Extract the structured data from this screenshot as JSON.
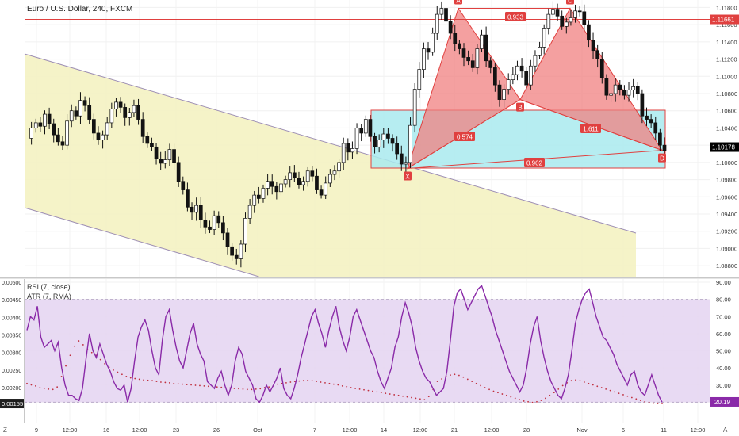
{
  "header": {
    "symbol_line": "Euro / U.S. Dollar, 240, FXCM"
  },
  "colors": {
    "bull": "#ffffff",
    "bear": "#131313",
    "hline": "#e0403f",
    "channel_fill": "#f4f2c2",
    "channel_line": "#9e8fb4",
    "harmonic_fill": "#f08080",
    "harmonic_edge": "#e0403f",
    "box_fill": "#a9eaee",
    "box_edge": "#e0403f",
    "rsi_line": "#8a2aa8",
    "rsi_band_fill": "#e6d6f2",
    "atr_dots": "#c0303f",
    "price_badge": "#000000",
    "hline_badge": "#e0403f",
    "rsi_badge": "#8a2aa8",
    "atr_badge": "#1e1e1e"
  },
  "chart_data": [
    {
      "type": "candlestick",
      "title": "Euro / U.S. Dollar, 240, FXCM",
      "y_ticks": [
        "1.11800",
        "1.11600",
        "1.11400",
        "1.11200",
        "1.11000",
        "1.10800",
        "1.10600",
        "1.10400",
        "1.10200",
        "1.10000",
        "1.09800",
        "1.09600",
        "1.09400",
        "1.09200",
        "1.09000",
        "1.08800"
      ],
      "ylim": [
        1.087,
        1.1185
      ],
      "last_price_label": "1.10178",
      "last_price": 1.10178,
      "hline_label": "1.11661",
      "hline_price": 1.11661,
      "harmonic_pattern": {
        "points": [
          {
            "label": "X",
            "price": 1.0993
          },
          {
            "label": "A",
            "price": 1.1179
          },
          {
            "label": "B",
            "price": 1.1073
          },
          {
            "label": "C",
            "price": 1.1179
          },
          {
            "label": "D",
            "price": 1.1014
          }
        ],
        "ratios": [
          "0.933",
          "0.574",
          "1.611",
          "0.902"
        ]
      },
      "anchors": [
        1.1028,
        1.104,
        1.1046,
        1.1042,
        1.1056,
        1.1045,
        1.1032,
        1.1024,
        1.102,
        1.1048,
        1.106,
        1.1054,
        1.1072,
        1.1066,
        1.105,
        1.1034,
        1.1026,
        1.1032,
        1.1046,
        1.1062,
        1.107,
        1.1064,
        1.1052,
        1.1058,
        1.1066,
        1.105,
        1.103,
        1.1022,
        1.1018,
        1.1004,
        1.0999,
        1.1003,
        1.1015,
        1.1,
        1.0978,
        1.0968,
        1.0948,
        1.0942,
        1.095,
        1.0933,
        1.0925,
        1.0922,
        1.0938,
        1.093,
        1.0918,
        1.0902,
        1.0892,
        1.0888,
        1.0905,
        1.0935,
        1.095,
        1.0962,
        1.0958,
        1.097,
        1.0978,
        1.0972,
        1.0966,
        1.0975,
        1.098,
        1.0988,
        1.0982,
        1.0974,
        1.0978,
        1.099,
        1.0984,
        1.0968,
        1.0962,
        1.0976,
        1.0986,
        1.099,
        1.1,
        1.1022,
        1.1012,
        1.1016,
        1.104,
        1.1034,
        1.105,
        1.103,
        1.1018,
        1.1026,
        1.1033,
        1.1028,
        1.1022,
        1.101,
        1.0998,
        1.1,
        1.1043,
        1.1085,
        1.1108,
        1.1132,
        1.1128,
        1.115,
        1.1172,
        1.1179,
        1.1164,
        1.115,
        1.1138,
        1.1132,
        1.1122,
        1.1118,
        1.111,
        1.1132,
        1.1148,
        1.1118,
        1.111,
        1.109,
        1.1073,
        1.1085,
        1.1096,
        1.1102,
        1.1112,
        1.1106,
        1.109,
        1.1112,
        1.1124,
        1.1134,
        1.1156,
        1.1172,
        1.1178,
        1.117,
        1.1158,
        1.1163,
        1.1168,
        1.1176,
        1.1175,
        1.116,
        1.1142,
        1.113,
        1.112,
        1.1098,
        1.1078,
        1.108,
        1.109,
        1.1084,
        1.1078,
        1.1084,
        1.1088,
        1.108,
        1.1054,
        1.105,
        1.1046,
        1.1034,
        1.102,
        1.1014
      ]
    },
    {
      "type": "line",
      "legend": [
        "RSI (7, close)",
        "ATR (7, RMA)"
      ],
      "rsi_ylim": [
        10,
        90
      ],
      "rsi_ticks": [
        "90.00",
        "80.00",
        "70.00",
        "60.00",
        "50.00",
        "40.00",
        "30.00",
        "20.00"
      ],
      "rsi_band": [
        20,
        80
      ],
      "rsi_last_label": "20.19",
      "rsi_last": 20.19,
      "atr_ylim": [
        0.0011,
        0.005
      ],
      "atr_ticks": [
        "0.00500",
        "0.00450",
        "0.00400",
        "0.00350",
        "0.00300",
        "0.00250",
        "0.00200"
      ],
      "atr_last_label": "0.00155",
      "atr_last": 0.00155,
      "rsi_values": [
        62,
        70,
        68,
        76,
        58,
        52,
        54,
        56,
        50,
        55,
        40,
        30,
        24,
        24,
        22,
        21,
        28,
        45,
        60,
        50,
        46,
        54,
        48,
        42,
        38,
        32,
        28,
        27,
        30,
        20,
        28,
        44,
        58,
        64,
        68,
        62,
        50,
        40,
        36,
        56,
        70,
        74,
        62,
        52,
        44,
        40,
        50,
        60,
        66,
        54,
        48,
        44,
        32,
        30,
        28,
        34,
        38,
        30,
        24,
        30,
        44,
        52,
        48,
        38,
        34,
        30,
        22,
        20,
        24,
        30,
        26,
        30,
        34,
        40,
        28,
        24,
        22,
        28,
        36,
        46,
        54,
        62,
        70,
        74,
        66,
        60,
        52,
        62,
        70,
        76,
        64,
        56,
        50,
        58,
        70,
        74,
        68,
        62,
        56,
        50,
        46,
        38,
        32,
        28,
        34,
        40,
        52,
        58,
        70,
        78,
        72,
        64,
        52,
        44,
        38,
        34,
        32,
        28,
        24,
        26,
        28,
        38,
        56,
        76,
        84,
        86,
        80,
        74,
        78,
        82,
        86,
        88,
        82,
        76,
        70,
        62,
        56,
        50,
        44,
        38,
        34,
        30,
        26,
        30,
        40,
        54,
        64,
        70,
        56,
        46,
        38,
        32,
        28,
        24,
        22,
        28,
        36,
        50,
        66,
        74,
        80,
        84,
        86,
        78,
        70,
        64,
        58,
        56,
        52,
        48,
        42,
        38,
        34,
        30,
        36,
        38,
        30,
        26,
        24,
        30,
        36,
        30,
        24,
        20
      ],
      "atr_values": [
        0.00212,
        0.00208,
        0.00205,
        0.002,
        0.00198,
        0.00196,
        0.00195,
        0.00202,
        0.00232,
        0.00262,
        0.00292,
        0.00318,
        0.00333,
        0.00322,
        0.0031,
        0.003,
        0.00292,
        0.0028,
        0.00268,
        0.00258,
        0.0025,
        0.00244,
        0.00238,
        0.00232,
        0.00228,
        0.00226,
        0.00224,
        0.00222,
        0.00221,
        0.0022,
        0.00218,
        0.00216,
        0.00215,
        0.00214,
        0.00212,
        0.00211,
        0.0021,
        0.00209,
        0.00208,
        0.00207,
        0.00206,
        0.00205,
        0.00204,
        0.00203,
        0.00202,
        0.00201,
        0.002,
        0.00199,
        0.00198,
        0.00197,
        0.00196,
        0.00195,
        0.00195,
        0.00196,
        0.00197,
        0.002,
        0.00202,
        0.00205,
        0.0021,
        0.00212,
        0.00214,
        0.00216,
        0.00218,
        0.00219,
        0.0022,
        0.00221,
        0.0022,
        0.00218,
        0.00216,
        0.00214,
        0.00212,
        0.0021,
        0.00208,
        0.00205,
        0.00203,
        0.002,
        0.00198,
        0.00196,
        0.00194,
        0.00192,
        0.0019,
        0.00188,
        0.00186,
        0.00184,
        0.00182,
        0.0018,
        0.00178,
        0.00176,
        0.00174,
        0.00172,
        0.0017,
        0.00168,
        0.00166,
        0.00175,
        0.00195,
        0.00218,
        0.00225,
        0.00232,
        0.00236,
        0.00238,
        0.00235,
        0.0023,
        0.00224,
        0.00218,
        0.00212,
        0.00206,
        0.002,
        0.00195,
        0.0019,
        0.00186,
        0.00182,
        0.00178,
        0.00174,
        0.0017,
        0.00166,
        0.00162,
        0.0016,
        0.00158,
        0.0016,
        0.00164,
        0.0017,
        0.00178,
        0.00186,
        0.00196,
        0.00206,
        0.00214,
        0.0022,
        0.00222,
        0.0022,
        0.00216,
        0.00212,
        0.00208,
        0.00204,
        0.002,
        0.00196,
        0.00192,
        0.00188,
        0.00184,
        0.0018,
        0.00176,
        0.00172,
        0.00168,
        0.00164,
        0.0016,
        0.00158,
        0.00156,
        0.00155,
        0.00155
      ]
    }
  ],
  "x_axis": {
    "left_label": "Z",
    "right_label": "A",
    "ticks": [
      "9",
      "12:00",
      "16",
      "12:00",
      "23",
      "26",
      "Oct",
      "7",
      "12:00",
      "14",
      "12:00",
      "21",
      "12:00",
      "28",
      "Nov",
      "6",
      "11",
      "12:00"
    ]
  }
}
